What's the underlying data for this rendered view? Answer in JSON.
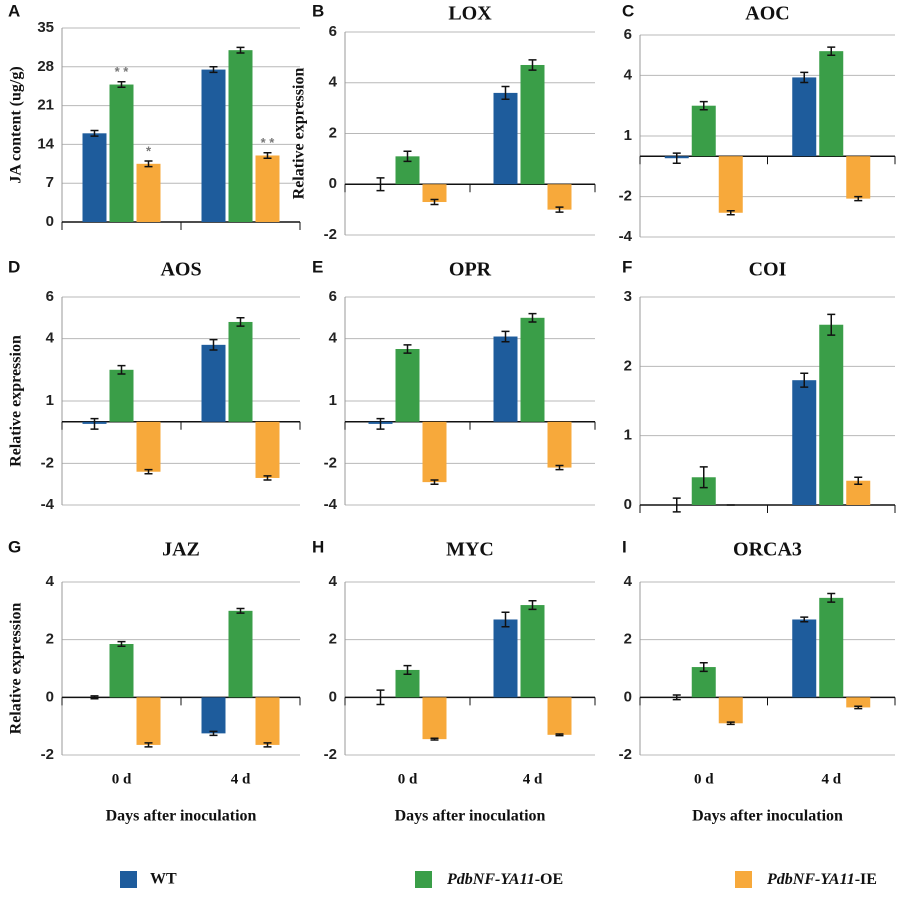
{
  "legend": [
    {
      "name": "WT",
      "color": "#1e5c9c"
    },
    {
      "name": "PdbNF-YA11-OE",
      "color": "#3a9e48"
    },
    {
      "name": "PdbNF-YA11-IE",
      "color": "#f7a93b"
    }
  ],
  "chart_data": [
    {
      "type": "bar",
      "label": "A",
      "ylabel": "JA content (ug/g)",
      "ylim": [
        0,
        35
      ],
      "yticks": [
        0,
        7,
        14,
        21,
        28,
        35
      ],
      "grid": true,
      "categories": [
        null,
        null
      ],
      "series": [
        {
          "values": [
            16,
            27.5
          ],
          "errors": [
            0.5,
            0.5
          ]
        },
        {
          "values": [
            24.8,
            31
          ],
          "errors": [
            0.5,
            0.5
          ]
        },
        {
          "values": [
            10.5,
            12
          ],
          "errors": [
            0.5,
            0.5
          ]
        }
      ],
      "annotations": [
        "* *",
        "*",
        "* *"
      ]
    },
    {
      "type": "bar",
      "label": "B",
      "title": "LOX",
      "ylabel": "Relative expression",
      "ylim": [
        -2,
        6
      ],
      "yticks": [
        -2,
        0,
        2,
        4,
        6
      ],
      "grid": true,
      "categories": [
        null,
        null
      ],
      "series": [
        {
          "values": [
            0,
            3.6
          ],
          "errors": [
            0.25,
            0.25
          ]
        },
        {
          "values": [
            1.1,
            4.7
          ],
          "errors": [
            0.2,
            0.2
          ]
        },
        {
          "values": [
            -0.7,
            -1.0
          ],
          "errors": [
            0.1,
            0.1
          ]
        }
      ]
    },
    {
      "type": "bar",
      "label": "C",
      "title": "AOC",
      "ylim": [
        -4,
        6
      ],
      "yticks": [
        -4,
        -2,
        1,
        4,
        6
      ],
      "grid": true,
      "categories": [
        null,
        null
      ],
      "series": [
        {
          "values": [
            -0.1,
            3.9
          ],
          "errors": [
            0.25,
            0.25
          ]
        },
        {
          "values": [
            2.5,
            5.2
          ],
          "errors": [
            0.2,
            0.2
          ]
        },
        {
          "values": [
            -2.8,
            -2.1
          ],
          "errors": [
            0.1,
            0.1
          ]
        }
      ]
    },
    {
      "type": "bar",
      "label": "D",
      "title": "AOS",
      "ylabel": "Relative expression",
      "ylim": [
        -4,
        6
      ],
      "yticks": [
        -4,
        -2,
        1,
        4,
        6
      ],
      "grid": true,
      "categories": [
        null,
        null
      ],
      "series": [
        {
          "values": [
            -0.1,
            3.7
          ],
          "errors": [
            0.25,
            0.25
          ]
        },
        {
          "values": [
            2.5,
            4.8
          ],
          "errors": [
            0.2,
            0.2
          ]
        },
        {
          "values": [
            -2.4,
            -2.7
          ],
          "errors": [
            0.1,
            0.1
          ]
        }
      ]
    },
    {
      "type": "bar",
      "label": "E",
      "title": "OPR",
      "ylim": [
        -4,
        6
      ],
      "yticks": [
        -4,
        -2,
        1,
        4,
        6
      ],
      "grid": true,
      "categories": [
        null,
        null
      ],
      "series": [
        {
          "values": [
            -0.1,
            4.1
          ],
          "errors": [
            0.25,
            0.25
          ]
        },
        {
          "values": [
            3.5,
            5.0
          ],
          "errors": [
            0.2,
            0.2
          ]
        },
        {
          "values": [
            -2.9,
            -2.2
          ],
          "errors": [
            0.1,
            0.1
          ]
        }
      ]
    },
    {
      "type": "bar",
      "label": "F",
      "title": "COI",
      "ylim": [
        0,
        3
      ],
      "yticks": [
        0,
        1,
        2,
        3
      ],
      "grid": true,
      "categories": [
        null,
        null
      ],
      "series": [
        {
          "values": [
            0,
            1.8
          ],
          "errors": [
            0.1,
            0.1
          ]
        },
        {
          "values": [
            0.4,
            2.6
          ],
          "errors": [
            0.15,
            0.15
          ]
        },
        {
          "values": [
            0,
            0.35
          ],
          "errors": [
            0,
            0.05
          ]
        }
      ]
    },
    {
      "type": "bar",
      "label": "G",
      "title": "JAZ",
      "ylabel": "Relative expression",
      "xlabel": "Days after inoculation",
      "ylim": [
        -2,
        4
      ],
      "yticks": [
        -2,
        0,
        2,
        4
      ],
      "grid": true,
      "categories": [
        "0 d",
        "4 d"
      ],
      "series": [
        {
          "values": [
            0,
            -1.25
          ],
          "errors": [
            0.05,
            0.07
          ]
        },
        {
          "values": [
            1.85,
            3.0
          ],
          "errors": [
            0.08,
            0.08
          ]
        },
        {
          "values": [
            -1.65,
            -1.65
          ],
          "errors": [
            0.07,
            0.07
          ]
        }
      ]
    },
    {
      "type": "bar",
      "label": "H",
      "title": "MYC",
      "xlabel": "Days after inoculation",
      "ylim": [
        -2,
        4
      ],
      "yticks": [
        -2,
        0,
        2,
        4
      ],
      "grid": true,
      "categories": [
        "0 d",
        "4 d"
      ],
      "series": [
        {
          "values": [
            0,
            2.7
          ],
          "errors": [
            0.25,
            0.25
          ]
        },
        {
          "values": [
            0.95,
            3.2
          ],
          "errors": [
            0.15,
            0.15
          ]
        },
        {
          "values": [
            -1.45,
            -1.3
          ],
          "errors": [
            0.03,
            0.03
          ]
        }
      ]
    },
    {
      "type": "bar",
      "label": "I",
      "title": "ORCA3",
      "xlabel": "Days after inoculation",
      "ylim": [
        -2,
        4
      ],
      "yticks": [
        -2,
        0,
        2,
        4
      ],
      "grid": true,
      "categories": [
        "0 d",
        "4 d"
      ],
      "series": [
        {
          "values": [
            0,
            2.7
          ],
          "errors": [
            0.08,
            0.08
          ]
        },
        {
          "values": [
            1.05,
            3.45
          ],
          "errors": [
            0.15,
            0.15
          ]
        },
        {
          "values": [
            -0.9,
            -0.35
          ],
          "errors": [
            0.04,
            0.04
          ]
        }
      ]
    }
  ]
}
